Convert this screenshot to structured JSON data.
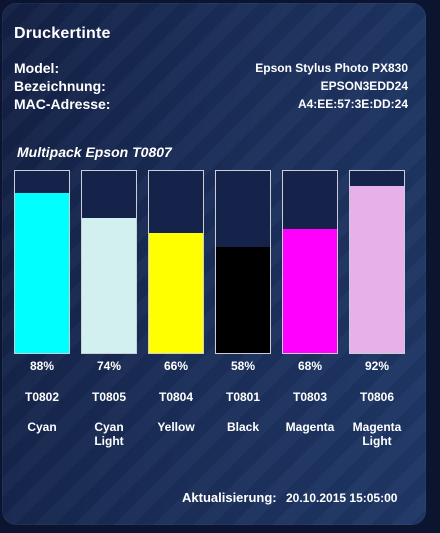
{
  "title": "Druckertinte",
  "info": [
    {
      "label": "Model:",
      "value": "Epson Stylus Photo PX830"
    },
    {
      "label": "Bezeichnung:",
      "value": "EPSON3EDD24"
    },
    {
      "label": "MAC-Adresse:",
      "value": "A4:EE:57:3E:DD:24"
    }
  ],
  "multipack_label": "Multipack Epson T0807",
  "cartridges": [
    {
      "percent_label": "88%",
      "level": 88,
      "code": "T0802",
      "name": "Cyan",
      "color": "#00ffff"
    },
    {
      "percent_label": "74%",
      "level": 74,
      "code": "T0805",
      "name": "Cyan\nLight",
      "color": "#d3f0f0"
    },
    {
      "percent_label": "66%",
      "level": 66,
      "code": "T0804",
      "name": "Yellow",
      "color": "#ffff00"
    },
    {
      "percent_label": "58%",
      "level": 58,
      "code": "T0801",
      "name": "Black",
      "color": "#000000"
    },
    {
      "percent_label": "68%",
      "level": 68,
      "code": "T0803",
      "name": "Magenta",
      "color": "#ff00ff"
    },
    {
      "percent_label": "92%",
      "level": 92,
      "code": "T0806",
      "name": "Magenta\nLight",
      "color": "#e8b0e8"
    }
  ],
  "footer": {
    "label": "Aktualisierung:",
    "value": "20.10.2015 15:05:00"
  }
}
